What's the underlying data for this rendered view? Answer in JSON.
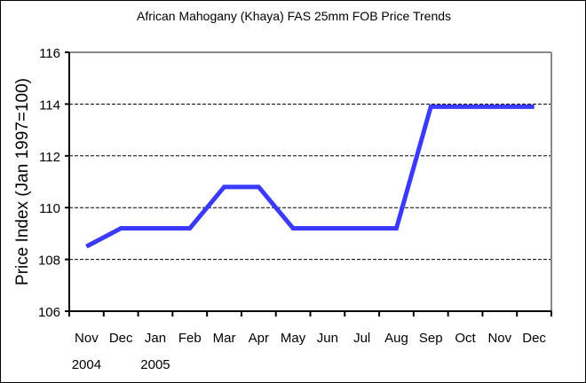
{
  "chart_data": {
    "type": "line",
    "title": "African Mahogany (Khaya) FAS 25mm FOB Price Trends",
    "xlabel": "",
    "ylabel": "Price Index (Jan 1997=100)",
    "ylim": [
      106,
      116
    ],
    "yticks": [
      106,
      108,
      110,
      112,
      114,
      116
    ],
    "grid": true,
    "categories": [
      "Nov",
      "Dec",
      "Jan",
      "Feb",
      "Mar",
      "Apr",
      "May",
      "Jun",
      "Jul",
      "Aug",
      "Sep",
      "Oct",
      "Nov",
      "Dec"
    ],
    "year_labels": [
      {
        "index": 0,
        "label": "2004"
      },
      {
        "index": 2,
        "label": "2005"
      }
    ],
    "series": [
      {
        "name": "Price Index",
        "color": "#3a3aff",
        "values": [
          108.5,
          109.2,
          109.2,
          109.2,
          110.8,
          110.8,
          109.2,
          109.2,
          109.2,
          109.2,
          113.9,
          113.9,
          113.9,
          113.9
        ]
      }
    ]
  }
}
